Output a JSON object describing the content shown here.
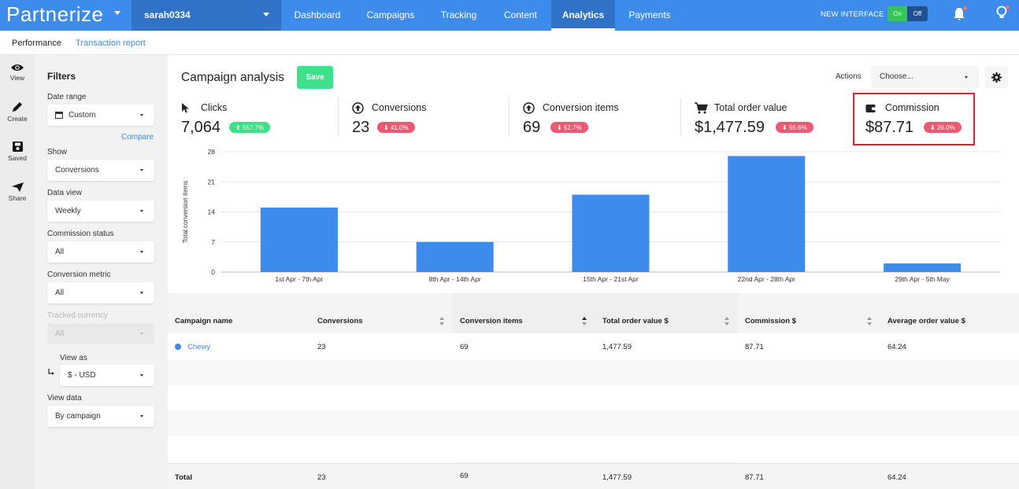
{
  "brand": {
    "logo_text": "Partnerize",
    "accent": "#3d8beb",
    "dark_accent": "#2f72c7"
  },
  "account": {
    "name": "sarah0334"
  },
  "nav": {
    "tabs": [
      {
        "label": "Dashboard",
        "active": false
      },
      {
        "label": "Campaigns",
        "active": false
      },
      {
        "label": "Tracking",
        "active": false
      },
      {
        "label": "Content",
        "active": false
      },
      {
        "label": "Analytics",
        "active": true
      },
      {
        "label": "Payments",
        "active": false
      }
    ],
    "new_interface_label": "NEW INTERFACE",
    "toggle_on": "On",
    "toggle_off": "Off"
  },
  "subnav": {
    "performance": "Performance",
    "transaction_report": "Transaction report"
  },
  "rail": [
    {
      "label": "View",
      "icon": "eye-icon"
    },
    {
      "label": "Create",
      "icon": "pencil-icon"
    },
    {
      "label": "Saved",
      "icon": "save-icon"
    },
    {
      "label": "Share",
      "icon": "paper-plane-icon"
    }
  ],
  "filters": {
    "title": "Filters",
    "date_range_label": "Date range",
    "date_range_value": "Custom",
    "compare_link": "Compare",
    "show_label": "Show",
    "show_value": "Conversions",
    "data_view_label": "Data view",
    "data_view_value": "Weekly",
    "commission_status_label": "Commission status",
    "commission_status_value": "All",
    "conversion_metric_label": "Conversion metric",
    "conversion_metric_value": "All",
    "tracked_currency_label": "Tracked currency",
    "tracked_currency_value": "All",
    "view_as_label": "View as",
    "view_as_value": "$ - USD",
    "view_data_label": "View data",
    "view_data_value": "By campaign"
  },
  "main": {
    "title": "Campaign analysis",
    "save_label": "Save",
    "actions_label": "Actions",
    "actions_placeholder": "Choose..."
  },
  "kpis": [
    {
      "name": "Clicks",
      "value": "7,064",
      "change": "557.7%",
      "direction": "up",
      "icon": "cursor-icon"
    },
    {
      "name": "Conversions",
      "value": "23",
      "change": "41.0%",
      "direction": "down",
      "icon": "arrow-up-circle-icon"
    },
    {
      "name": "Conversion items",
      "value": "69",
      "change": "52.7%",
      "direction": "down",
      "icon": "arrow-up-circle-icon"
    },
    {
      "name": "Total order value",
      "value": "$1,477.59",
      "change": "55.6%",
      "direction": "down",
      "icon": "cart-icon"
    },
    {
      "name": "Commission",
      "value": "$87.71",
      "change": "26.0%",
      "direction": "down",
      "icon": "wallet-icon"
    }
  ],
  "chart_data": {
    "type": "bar",
    "categories": [
      "1st Apr - 7th Apr",
      "8th Apr - 14th Apr",
      "15th Apr - 21st Apr",
      "22nd Apr - 28th Apr",
      "29th Apr - 5th May"
    ],
    "values": [
      15,
      7,
      18,
      27,
      2
    ],
    "ylabel": "Total conversion items",
    "ylim": [
      0,
      28
    ],
    "yticks": [
      0,
      7,
      14,
      21,
      28
    ],
    "color": "#3d8beb",
    "grid": true
  },
  "table": {
    "columns": [
      "Campaign name",
      "Conversions",
      "Conversion items",
      "Total order value $",
      "Commission $",
      "Average order value $"
    ],
    "rows": [
      {
        "name": "Chewy",
        "conversions": "23",
        "items": "69",
        "order_value": "1,477.59",
        "commission": "87.71",
        "avg_order": "64.24"
      }
    ],
    "total": {
      "label": "Total",
      "conversions": "23",
      "items": "69",
      "order_value": "1,477.59",
      "commission": "87.71",
      "avg_order": "64.24"
    }
  }
}
